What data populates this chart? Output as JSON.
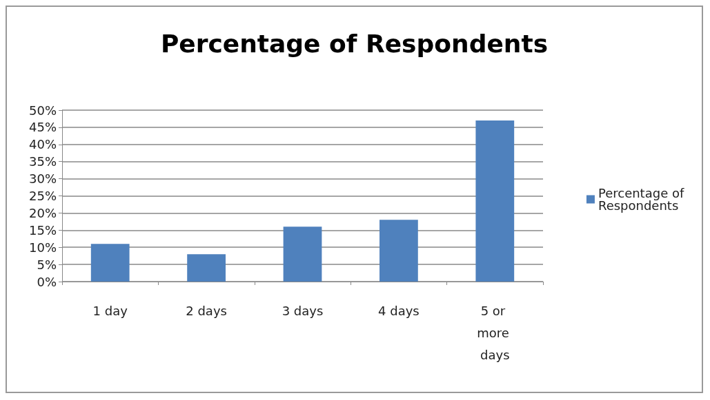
{
  "chart_data": {
    "type": "bar",
    "title": "Percentage of Respondents",
    "categories": [
      "1 day",
      "2 days",
      "3 days",
      "4 days",
      "5 or more days"
    ],
    "series": [
      {
        "name": "Percentage of Respondents",
        "color": "#4f81bd",
        "values": [
          11,
          8,
          16,
          18,
          47
        ]
      }
    ],
    "ylim": [
      0,
      50
    ],
    "yticks": [
      {
        "value": 0,
        "label": "0%"
      },
      {
        "value": 5,
        "label": "5%"
      },
      {
        "value": 10,
        "label": "10%"
      },
      {
        "value": 15,
        "label": "15%"
      },
      {
        "value": 20,
        "label": "20%"
      },
      {
        "value": 25,
        "label": "25%"
      },
      {
        "value": 30,
        "label": "30%"
      },
      {
        "value": 35,
        "label": "35%"
      },
      {
        "value": 40,
        "label": "40%"
      },
      {
        "value": 45,
        "label": "45%"
      },
      {
        "value": 50,
        "label": "50%"
      }
    ],
    "grid": "y",
    "legend": "right"
  }
}
